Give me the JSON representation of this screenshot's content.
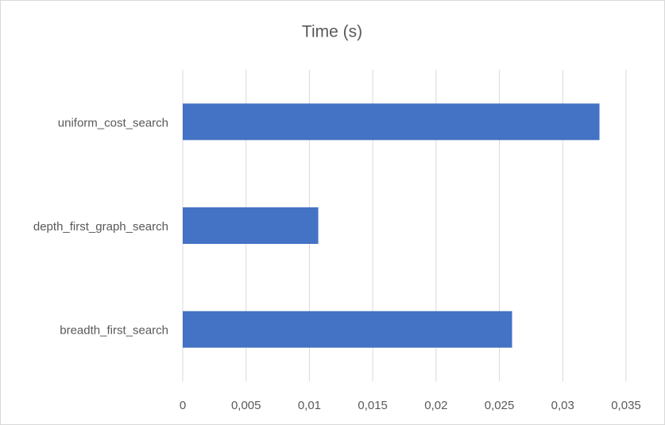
{
  "chart_data": {
    "type": "hbar",
    "title": "Time (s)",
    "categories": [
      "uniform_cost_search",
      "depth_first_graph_search",
      "breadth_first_search"
    ],
    "values": [
      0.0329,
      0.0107,
      0.026
    ],
    "color": "#4472c4",
    "xlim": [
      0,
      0.035
    ],
    "xticks": [
      0,
      {
        "value": 0.005,
        "label": "0,005"
      },
      {
        "value": 0.01,
        "label": "0,01"
      },
      {
        "value": 0.015,
        "label": "0,015"
      },
      {
        "value": 0.02,
        "label": "0,02"
      },
      {
        "value": 0.025,
        "label": "0,025"
      },
      {
        "value": 0.03,
        "label": "0,03"
      },
      {
        "value": 0.035,
        "label": "0,035"
      }
    ],
    "grid": true
  }
}
